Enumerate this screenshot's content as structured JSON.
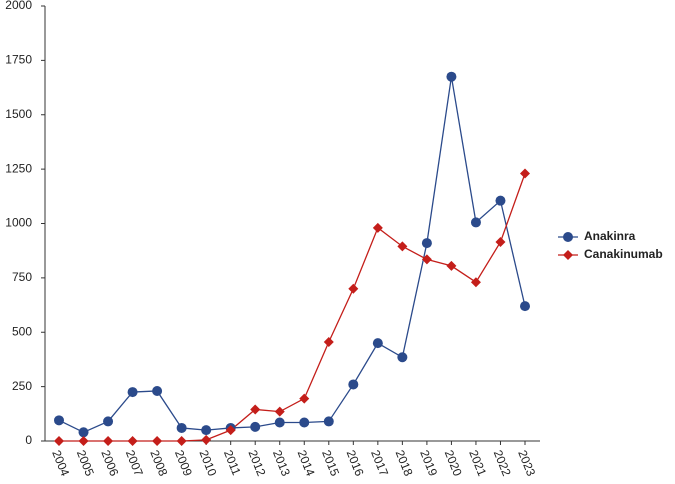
{
  "chart_data": {
    "type": "line",
    "categories": [
      "2004",
      "2005",
      "2006",
      "2007",
      "2008",
      "2009",
      "2010",
      "2011",
      "2012",
      "2013",
      "2014",
      "2015",
      "2016",
      "2017",
      "2018",
      "2019",
      "2020",
      "2021",
      "2022",
      "2023"
    ],
    "series": [
      {
        "name": "Anakinra",
        "color": "#2b4a8b",
        "marker": "circle",
        "values": [
          95,
          40,
          90,
          225,
          230,
          60,
          50,
          60,
          65,
          85,
          85,
          90,
          260,
          450,
          385,
          910,
          1675,
          1005,
          1105,
          620
        ]
      },
      {
        "name": "Canakinumab",
        "color": "#c41e1a",
        "marker": "diamond",
        "values": [
          0,
          0,
          0,
          0,
          0,
          0,
          5,
          50,
          145,
          135,
          195,
          455,
          700,
          980,
          895,
          835,
          805,
          730,
          915,
          1230
        ]
      }
    ],
    "ylim": [
      0,
      2000
    ],
    "yticks": [
      0,
      250,
      500,
      750,
      1000,
      1250,
      1500,
      1750,
      2000
    ],
    "grid": false,
    "legend": "right"
  }
}
